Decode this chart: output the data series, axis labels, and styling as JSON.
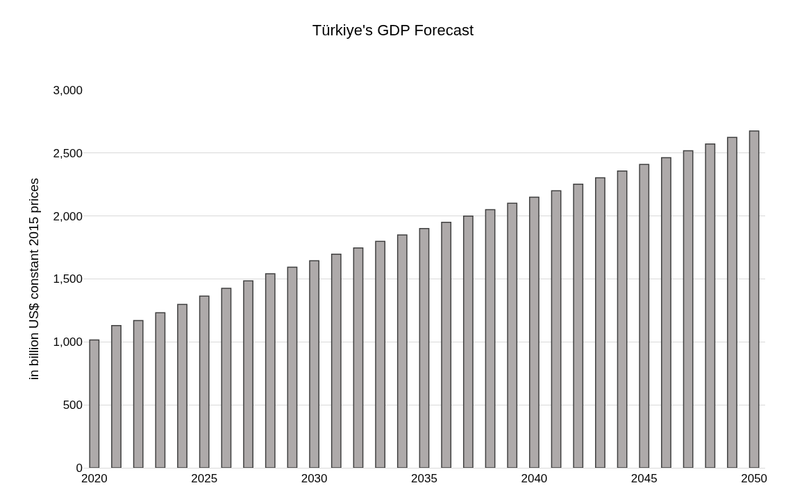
{
  "chart_data": {
    "type": "bar",
    "title": "Türkiye's GDP Forecast",
    "ylabel": "in billion US$ constant 2015 prices",
    "x": [
      2020,
      2021,
      2022,
      2023,
      2024,
      2025,
      2026,
      2027,
      2028,
      2029,
      2030,
      2031,
      2032,
      2033,
      2034,
      2035,
      2036,
      2037,
      2038,
      2039,
      2040,
      2041,
      2042,
      2043,
      2044,
      2045,
      2046,
      2047,
      2048,
      2049,
      2050
    ],
    "values": [
      1015,
      1130,
      1170,
      1231,
      1298,
      1364,
      1426,
      1485,
      1541,
      1594,
      1644,
      1697,
      1747,
      1799,
      1850,
      1900,
      1950,
      2000,
      2051,
      2101,
      2150,
      2201,
      2253,
      2304,
      2358,
      2410,
      2463,
      2519,
      2572,
      2624,
      2675
    ],
    "color": "#aeaaaa",
    "xlim": [
      2019.5,
      2050.5
    ],
    "xticks": [
      2020,
      2025,
      2030,
      2035,
      2040,
      2045,
      2050
    ],
    "ylim": [
      0,
      3000
    ],
    "yticks": [
      {
        "value": 0,
        "label": "0"
      },
      {
        "value": 500,
        "label": "500"
      },
      {
        "value": 1000,
        "label": "1,000"
      },
      {
        "value": 1500,
        "label": "1,500"
      },
      {
        "value": 2000,
        "label": "2,000"
      },
      {
        "value": 2500,
        "label": "2,500"
      },
      {
        "value": 3000,
        "label": "3,000"
      }
    ],
    "grid": "y"
  }
}
